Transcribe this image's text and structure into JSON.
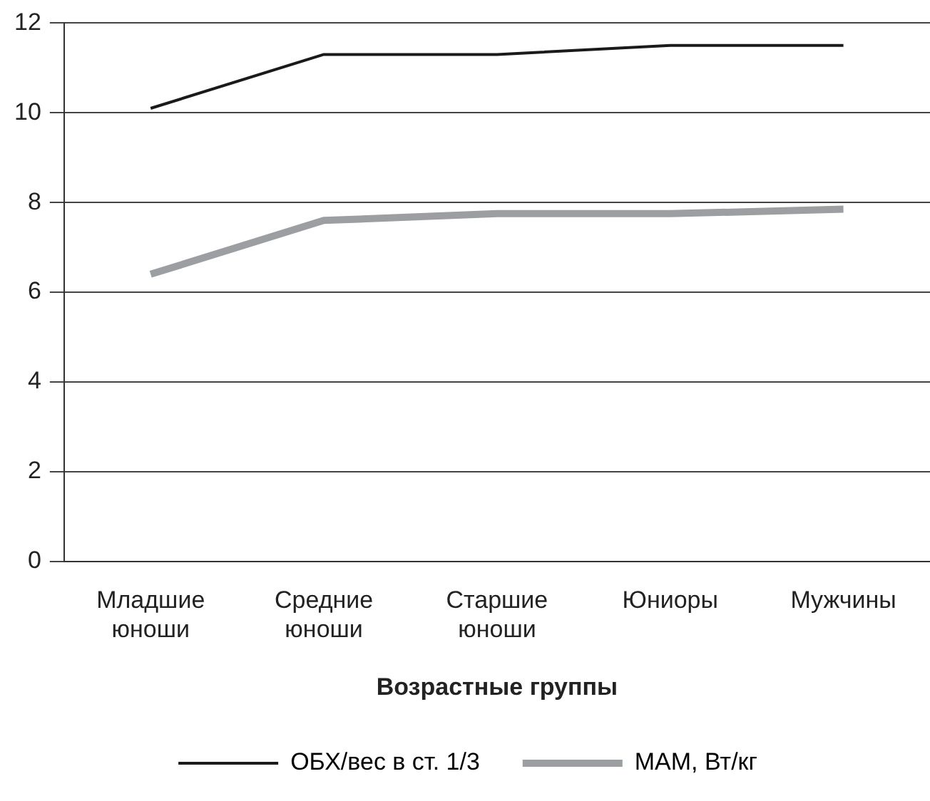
{
  "chart_data": {
    "type": "line",
    "xlabel": "Возрастные группы",
    "categories": [
      "Младшие\nюноши",
      "Средние\nюноши",
      "Старшие\nюноши",
      "Юниоры",
      "Мужчины"
    ],
    "series": [
      {
        "name": "ОБХ/вес в ст. 1/3",
        "color": "#1a1a1a",
        "values": [
          10.1,
          11.3,
          11.3,
          11.5,
          11.5
        ]
      },
      {
        "name": "МАМ, Вт/кг",
        "color": "#9d9ea2",
        "values": [
          6.4,
          7.6,
          7.75,
          7.75,
          7.85
        ]
      }
    ],
    "ylim": [
      0,
      12
    ],
    "yticks": [
      0,
      2,
      4,
      6,
      8,
      10,
      12
    ],
    "grid": "y",
    "legend": "bottom",
    "marker": "none",
    "line_style": "solid"
  }
}
